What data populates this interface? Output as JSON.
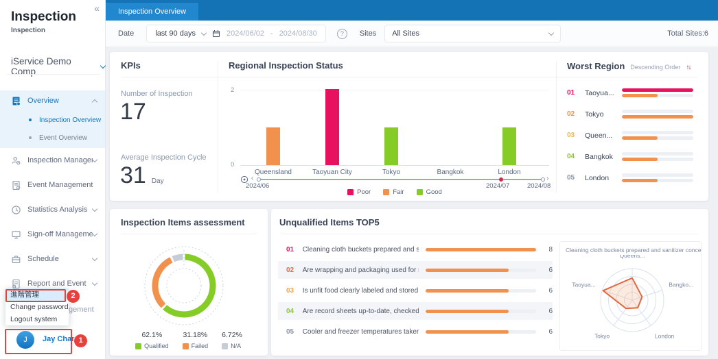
{
  "sidebar": {
    "collapse_icon": "«",
    "app_title": "Inspection",
    "app_subtitle": "Inspection",
    "company_selector": "iService Demo Comp",
    "menu": [
      {
        "id": "overview",
        "label": "Overview",
        "icon": "overview-icon",
        "active": true,
        "expanded": true,
        "children": [
          {
            "label": "Inspection Overview",
            "active": true
          },
          {
            "label": "Event Overview",
            "active": false
          }
        ]
      },
      {
        "id": "inspection-management",
        "label": "Inspection Management",
        "icon": "inspection-management-icon",
        "chevron": true
      },
      {
        "id": "event-management",
        "label": "Event Management",
        "icon": "event-management-icon",
        "chevron": false
      },
      {
        "id": "statistics-analysis",
        "label": "Statistics Analysis",
        "icon": "statistics-analysis-icon",
        "chevron": true
      },
      {
        "id": "sign-off-management",
        "label": "Sign-off Management",
        "icon": "sign-off-icon",
        "chevron": true
      },
      {
        "id": "schedule",
        "label": "Schedule",
        "icon": "schedule-icon",
        "chevron": true
      },
      {
        "id": "report-and-event",
        "label": "Report and Event",
        "icon": "report-icon",
        "chevron": true
      }
    ],
    "hidden_item_fragment": "gement",
    "context_menu": {
      "items": [
        {
          "label": "進階管理",
          "highlighted": true
        },
        {
          "label": "Change password",
          "highlighted": false
        },
        {
          "label": "Logout system",
          "highlighted": false
        }
      ]
    },
    "user": {
      "avatar_initial": "J",
      "name": "Jay Chang"
    }
  },
  "annotations": {
    "badge_1": "1",
    "badge_2": "2",
    "color": "#E8413C"
  },
  "topbar": {
    "active_tab": "Inspection Overview"
  },
  "filters": {
    "date_label": "Date",
    "date_preset": "last 90 days",
    "date_from": "2024/06/02",
    "date_separator": "-",
    "date_to": "2024/08/30",
    "sites_label": "Sites",
    "sites_value": "All Sites",
    "total_sites": "Total Sites:6"
  },
  "kpis": {
    "title": "KPIs",
    "items": [
      {
        "label": "Number of Inspection",
        "value": "17",
        "unit": ""
      },
      {
        "label": "Average Inspection Cycle",
        "value": "31",
        "unit": "Day"
      }
    ]
  },
  "chart_data": [
    {
      "id": "regional_inspection_status",
      "type": "bar",
      "title": "Regional Inspection Status",
      "categories": [
        "Queensland",
        "Taoyuan City",
        "Tokyo",
        "Bangkok",
        "London"
      ],
      "values": [
        1,
        2,
        1,
        0,
        1
      ],
      "statuses": [
        "Fair",
        "Poor",
        "Good",
        "None",
        "Good"
      ],
      "ylim": [
        0,
        2
      ],
      "yticks": [
        0,
        2
      ],
      "grid": true,
      "legend_position": "bottom",
      "legend": [
        {
          "label": "Poor",
          "color": "#E6125F"
        },
        {
          "label": "Fair",
          "color": "#F2914D"
        },
        {
          "label": "Good",
          "color": "#85CC26"
        }
      ],
      "slider": {
        "labels": [
          "2024/06",
          "2024/07",
          "2024/08"
        ]
      }
    },
    {
      "id": "worst_region",
      "type": "bar",
      "title": "Worst Region",
      "subtitle": "Descending Order",
      "xmax_pct": 100,
      "rows": [
        {
          "rank": "01",
          "rank_color": "#E6125F",
          "region": "Taoyua...",
          "top_bar_pct": 100,
          "top_bar_color": "#E6125F",
          "bottom_bar_pct": 50,
          "bottom_bar_color": "#F2914D"
        },
        {
          "rank": "02",
          "rank_color": "#F2914D",
          "region": "Tokyo",
          "top_bar_pct": 0,
          "top_bar_color": null,
          "bottom_bar_pct": 100,
          "bottom_bar_color": "#F2914D"
        },
        {
          "rank": "03",
          "rank_color": "#F3B64D",
          "region": "Queen...",
          "top_bar_pct": 0,
          "top_bar_color": null,
          "bottom_bar_pct": 50,
          "bottom_bar_color": "#F2914D"
        },
        {
          "rank": "04",
          "rank_color": "#8CC63F",
          "region": "Bangkok",
          "top_bar_pct": 0,
          "top_bar_color": null,
          "bottom_bar_pct": 50,
          "bottom_bar_color": "#F2914D"
        },
        {
          "rank": "05",
          "rank_color": "#8A94A6",
          "region": "London",
          "top_bar_pct": 0,
          "top_bar_color": null,
          "bottom_bar_pct": 50,
          "bottom_bar_color": "#F2914D"
        }
      ]
    },
    {
      "id": "inspection_items_assessment",
      "type": "pie",
      "title": "Inspection Items assessment",
      "legend_position": "bottom",
      "slices": [
        {
          "label": "Qualified",
          "value": 62.1,
          "display": "62.1%",
          "color": "#85CC26"
        },
        {
          "label": "Failed",
          "value": 31.18,
          "display": "31.18%",
          "color": "#F2914D"
        },
        {
          "label": "N/A",
          "value": 6.72,
          "display": "6.72%",
          "color": "#C7CDD8"
        }
      ]
    },
    {
      "id": "unqualified_items_top5",
      "type": "bar",
      "title": "Unqualified Items TOP5",
      "xmax": 8,
      "bar_color": "#F2914D",
      "rows": [
        {
          "rank": "01",
          "rank_color": "#E6125F",
          "label": "Cleaning cloth buckets prepared and sanitizer ...",
          "value": 8
        },
        {
          "rank": "02",
          "rank_color": "#F2674C",
          "label": "Are wrapping and packaging used for ready-to-...",
          "value": 6
        },
        {
          "rank": "03",
          "rank_color": "#F3A64D",
          "label": "Is unfit food clearly labeled and stored separat...",
          "value": 6
        },
        {
          "rank": "04",
          "rank_color": "#8CC63F",
          "label": "Are record sheets up-to-date, checked and veri...",
          "value": 6
        },
        {
          "rank": "05",
          "rank_color": "#8A94A6",
          "label": "Cooler and freezer temperatures taken and rec...",
          "value": 6
        }
      ]
    },
    {
      "id": "radar_unqualified_item",
      "type": "radar",
      "title": "Cleaning cloth buckets prepared and sanitizer concentr...",
      "axes": [
        "Queens...",
        "Bangko...",
        "London",
        "Tokyo",
        "Taoyua..."
      ],
      "values_normalized": [
        0.7,
        0.33,
        0.3,
        0.33,
        0.97
      ],
      "rings": 4,
      "color": "#E2683F"
    }
  ]
}
